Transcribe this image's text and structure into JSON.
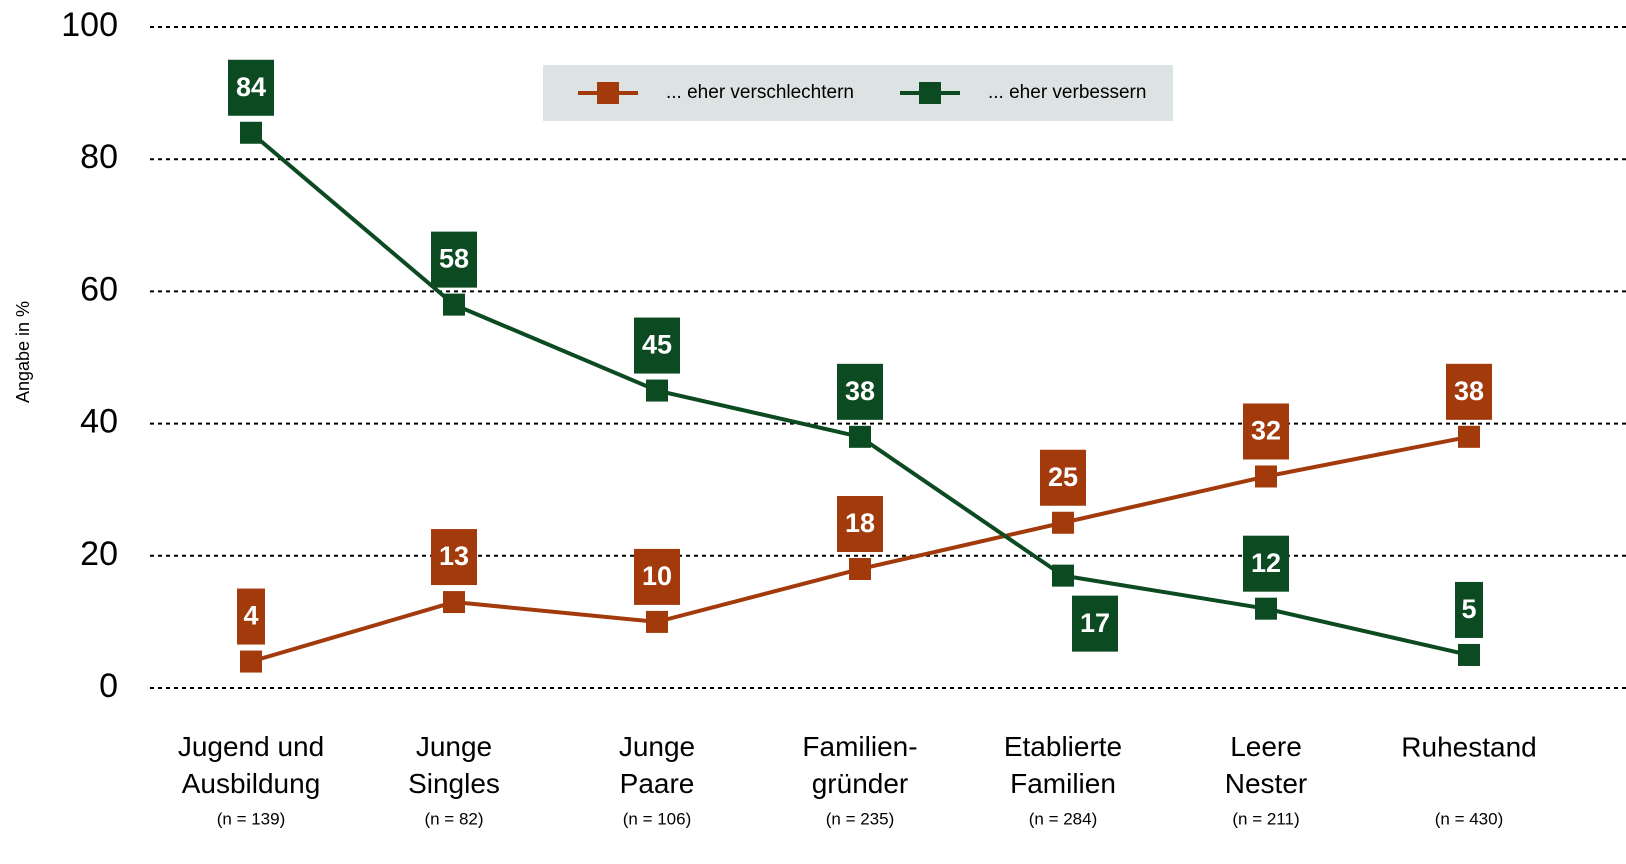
{
  "chart_data": {
    "type": "line",
    "y_axis_label": "Angabe in %",
    "categories": [
      "Jugend und\nAusbildung",
      "Junge\nSingles",
      "Junge\nPaare",
      "Familien-\ngründer",
      "Etablierte\nFamilien",
      "Leere\nNester",
      "Ruhestand"
    ],
    "category_notes": [
      "(n = 139)",
      "(n = 82)",
      "(n = 106)",
      "(n = 235)",
      "(n = 284)",
      "(n = 211)",
      "(n = 430)"
    ],
    "series": [
      {
        "name": "... eher verschlechtern",
        "color": "#a23a0c",
        "values": [
          4,
          13,
          10,
          18,
          25,
          32,
          38
        ]
      },
      {
        "name": "... eher verbessern",
        "color": "#0c4a22",
        "values": [
          84,
          58,
          45,
          38,
          17,
          12,
          5
        ]
      }
    ],
    "ylim": [
      0,
      100
    ],
    "yticks": [
      0,
      20,
      40,
      60,
      80,
      100
    ],
    "grid": true,
    "legend": "top"
  }
}
